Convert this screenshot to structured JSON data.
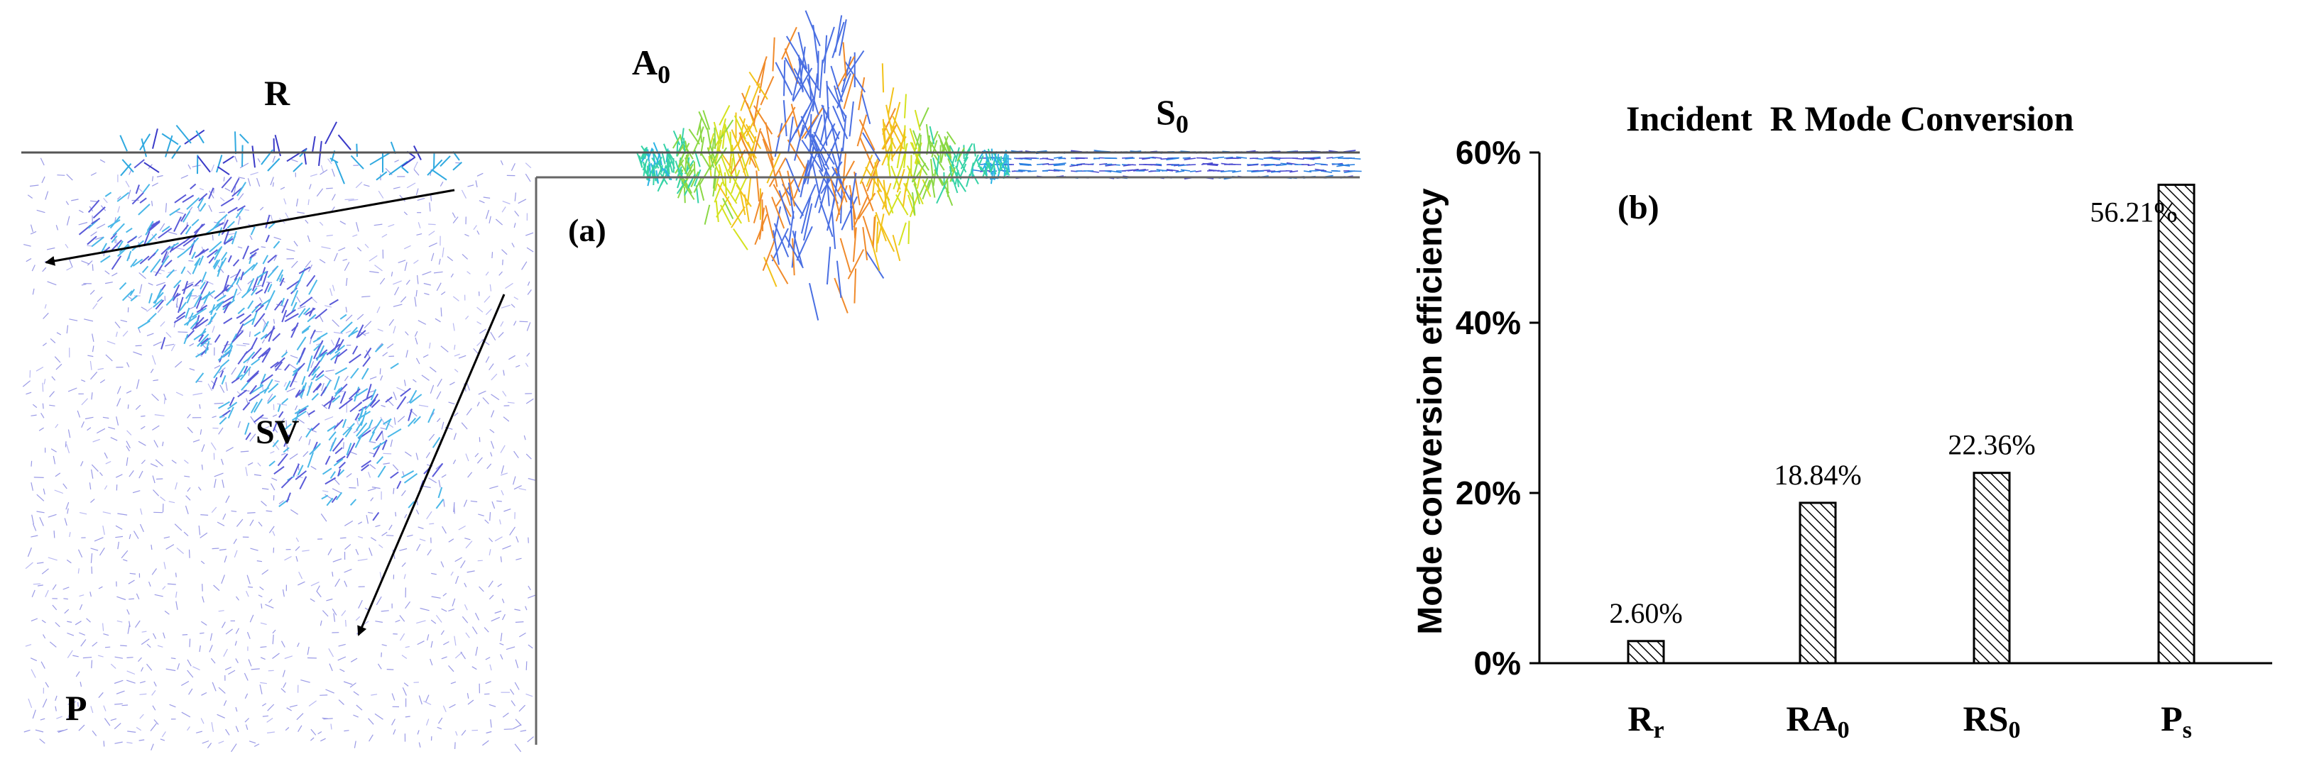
{
  "panel_a": {
    "tag": "(a)",
    "labels": {
      "r": "R",
      "a0_main": "A",
      "a0_sub": "0",
      "s0_main": "S",
      "s0_sub": "0",
      "sv": "SV",
      "p": "P"
    }
  },
  "chart_data": {
    "type": "bar",
    "title": "Incident  R Mode Conversion",
    "panel_tag": "(b)",
    "ylabel": "Mode conversion efficiency",
    "xlabel": "",
    "ylim": [
      0,
      60
    ],
    "yticks": [
      0,
      20,
      40,
      60
    ],
    "ytick_labels": [
      "0%",
      "20%",
      "40%",
      "60%"
    ],
    "categories": [
      {
        "main": "R",
        "sub": "r"
      },
      {
        "main": "RA",
        "sub": "0"
      },
      {
        "main": "RS",
        "sub": "0"
      },
      {
        "main": "P",
        "sub": "s"
      }
    ],
    "values": [
      2.6,
      18.84,
      22.36,
      56.21
    ],
    "data_labels": [
      "2.60%",
      "18.84%",
      "22.36%",
      "56.21%"
    ],
    "bar_fill": "hatched",
    "grid": false,
    "legend": "none"
  }
}
